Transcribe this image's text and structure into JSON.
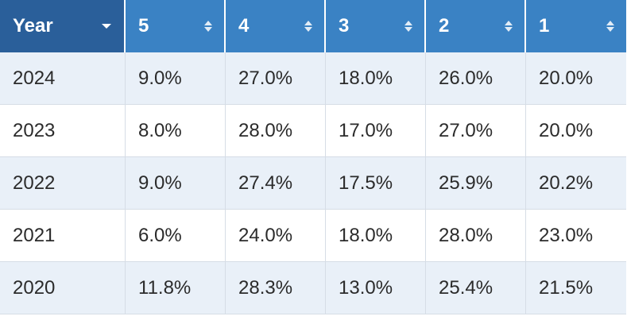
{
  "table": {
    "headers": [
      {
        "label": "Year",
        "icon": "caret-down-icon"
      },
      {
        "label": "5",
        "icon": "sort-icon"
      },
      {
        "label": "4",
        "icon": "sort-icon"
      },
      {
        "label": "3",
        "icon": "sort-icon"
      },
      {
        "label": "2",
        "icon": "sort-icon"
      },
      {
        "label": "1",
        "icon": "sort-icon"
      }
    ],
    "rows": [
      [
        "2024",
        "9.0%",
        "27.0%",
        "18.0%",
        "26.0%",
        "20.0%"
      ],
      [
        "2023",
        "8.0%",
        "28.0%",
        "17.0%",
        "27.0%",
        "20.0%"
      ],
      [
        "2022",
        "9.0%",
        "27.4%",
        "17.5%",
        "25.9%",
        "20.2%"
      ],
      [
        "2021",
        "6.0%",
        "24.0%",
        "18.0%",
        "28.0%",
        "23.0%"
      ],
      [
        "2020",
        "11.8%",
        "28.3%",
        "13.0%",
        "25.4%",
        "21.5%"
      ]
    ],
    "colors": {
      "header_accent": "#3a82c4",
      "header_active": "#2a5f9a",
      "row_stripe": "#e9f0f8"
    }
  }
}
